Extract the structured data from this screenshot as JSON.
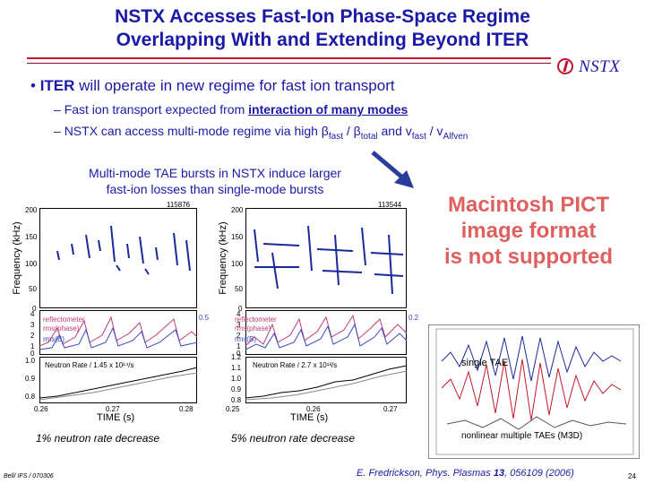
{
  "title": {
    "line1": "NSTX Accesses Fast-Ion Phase-Space Regime",
    "line2": "Overlapping With and Extending Beyond ITER"
  },
  "logo": {
    "text": "NSTX"
  },
  "bullet": {
    "marker": "•",
    "bold": "ITER",
    "rest": " will operate in new regime for fast ion transport"
  },
  "sub1": {
    "marker": "–",
    "pre": "Fast ion transport expected from ",
    "underlined": "interaction of many modes"
  },
  "sub2": {
    "marker": "–",
    "pre": "NSTX can access multi-mode regime via high ",
    "beta1": "β",
    "beta1_sub": "fast",
    "slash": " / ",
    "beta2": "β",
    "beta2_sub": "total",
    "mid": " and v",
    "v1_sub": "fast",
    "slash2": " / v",
    "v2_sub": "Alfven"
  },
  "caption": {
    "line1": "Multi-mode TAE bursts in NSTX induce larger",
    "line2": "fast-ion losses than single-mode bursts"
  },
  "pict": {
    "line1": "Macintosh PICT",
    "line2": "image format",
    "line3": "is not supported"
  },
  "plot_left": {
    "shot": "115876",
    "freq_label": "Frequency (kHz)",
    "freq_ticks": [
      "200",
      "150",
      "100",
      "50",
      "0"
    ],
    "legend": [
      "reflectometer",
      "rms(phase)",
      "rms(B)"
    ],
    "mid_ticks": [
      "4",
      "3",
      "2",
      "1",
      "0"
    ],
    "right_tick": "0.5",
    "neutron_label": "Neutron Rate / 1.45 x 10¹⁴/s",
    "neutron_ticks": [
      "1.0",
      "0.9",
      "0.8"
    ],
    "time_ticks": [
      "0.26",
      "0.27",
      "0.28"
    ],
    "time_label": "TIME (s)",
    "decrease": "1% neutron rate decrease"
  },
  "plot_right": {
    "shot": "113544",
    "freq_label": "Frequency (kHz)",
    "freq_ticks": [
      "200",
      "150",
      "100",
      "50",
      "0"
    ],
    "legend": [
      "reflectometer",
      "rms(phase)",
      "rms(B)"
    ],
    "mid_ticks": [
      "4",
      "3",
      "2",
      "1",
      "0"
    ],
    "right_tick": "0.2",
    "neutron_label": "Neutron Rate / 2.7 x 10¹³/s",
    "neutron_ticks": [
      "1.2",
      "1.1",
      "1.0",
      "0.9",
      "0.8"
    ],
    "time_ticks": [
      "0.25",
      "0.26",
      "0.27"
    ],
    "time_label": "TIME (s)",
    "decrease": "5% neutron rate decrease"
  },
  "tae": {
    "label1": "single TAE",
    "label2": "nonlinear multiple TAEs (M3D)"
  },
  "footer": {
    "left": "Bell/ IFS / 070306",
    "ref_pre": "E. Fredrickson, Phys. Plasmas ",
    "ref_vol": "13",
    "ref_post": ", 056109 (2006)",
    "page": "24"
  },
  "colors": {
    "title": "#1a1aa6",
    "rule": "#c4122f",
    "pict": "#e06060",
    "arrow": "#2a3d9a"
  }
}
